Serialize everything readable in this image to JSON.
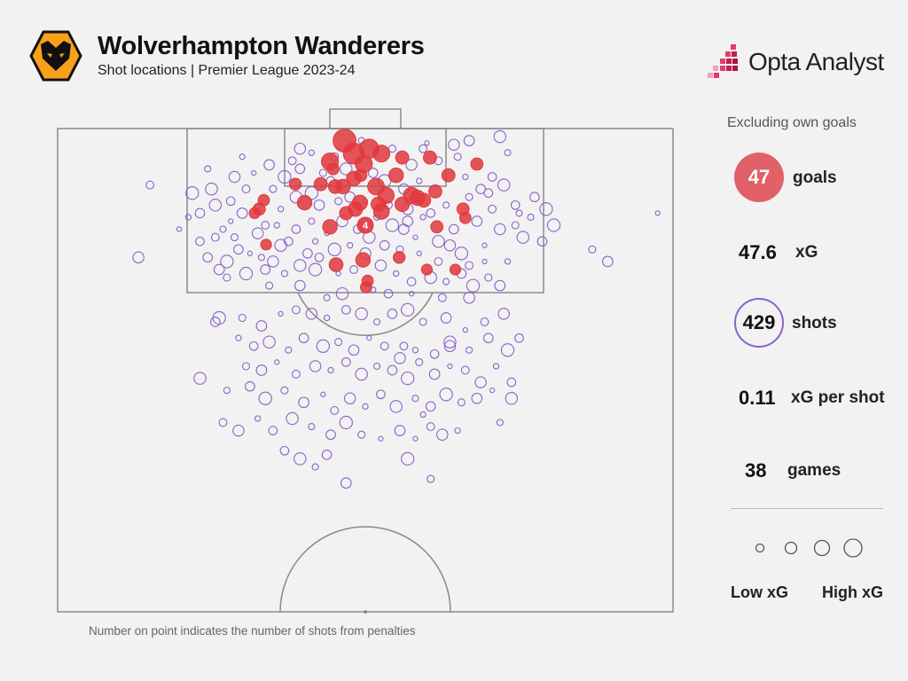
{
  "header": {
    "title": "Wolverhampton Wanderers",
    "subtitle": "Shot locations | Premier League 2023-24"
  },
  "brand": {
    "name": "Opta Analyst"
  },
  "colors": {
    "goal": "#e0383e",
    "shot": "#8a63c9",
    "line": "#8a8a8a",
    "background": "#f2f2f2",
    "badge": "#f9a01b"
  },
  "stats": {
    "note": "Excluding own goals",
    "goals": {
      "value": "47",
      "label": "goals"
    },
    "xg": {
      "value": "47.6",
      "label": "xG"
    },
    "shots": {
      "value": "429",
      "label": "shots"
    },
    "xg_per_shot": {
      "value": "0.11",
      "label": "xG per shot"
    },
    "games": {
      "value": "38",
      "label": "games"
    }
  },
  "legend": {
    "low": "Low xG",
    "high": "High xG"
  },
  "footnote": "Number on point indicates the number of shots from penalties",
  "chart_data": {
    "type": "scatter",
    "pitch": "half-pitch shot map, attacking goal at top",
    "units": "x = yards from left touchline (0–80), y = yards from goal line (0–60)",
    "penalty_marker": {
      "x": 40,
      "y": 12,
      "label": "4",
      "result": "goal",
      "shots": 4
    },
    "goals": [
      {
        "x": 37.3,
        "y": 1.5,
        "xg": 0.55
      },
      {
        "x": 38.5,
        "y": 3.1,
        "xg": 0.42
      },
      {
        "x": 40.5,
        "y": 2.5,
        "xg": 0.32
      },
      {
        "x": 39.8,
        "y": 4.4,
        "xg": 0.22
      },
      {
        "x": 35.4,
        "y": 4.1,
        "xg": 0.22
      },
      {
        "x": 42.1,
        "y": 3.1,
        "xg": 0.2
      },
      {
        "x": 44.8,
        "y": 3.6,
        "xg": 0.08
      },
      {
        "x": 48.4,
        "y": 3.6,
        "xg": 0.08
      },
      {
        "x": 50.8,
        "y": 5.8,
        "xg": 0.08
      },
      {
        "x": 44.0,
        "y": 5.8,
        "xg": 0.12
      },
      {
        "x": 41.4,
        "y": 7.2,
        "xg": 0.2
      },
      {
        "x": 38.5,
        "y": 6.2,
        "xg": 0.12
      },
      {
        "x": 39.4,
        "y": 5.8,
        "xg": 0.06
      },
      {
        "x": 30.9,
        "y": 6.9,
        "xg": 0.05
      },
      {
        "x": 34.2,
        "y": 6.9,
        "xg": 0.08
      },
      {
        "x": 36.1,
        "y": 7.2,
        "xg": 0.1
      },
      {
        "x": 37.1,
        "y": 7.2,
        "xg": 0.12
      },
      {
        "x": 42.7,
        "y": 8.3,
        "xg": 0.18
      },
      {
        "x": 46.0,
        "y": 8.3,
        "xg": 0.18
      },
      {
        "x": 46.8,
        "y": 8.6,
        "xg": 0.14
      },
      {
        "x": 47.6,
        "y": 8.9,
        "xg": 0.1
      },
      {
        "x": 49.1,
        "y": 7.8,
        "xg": 0.08
      },
      {
        "x": 44.8,
        "y": 9.4,
        "xg": 0.12
      },
      {
        "x": 41.7,
        "y": 9.4,
        "xg": 0.12
      },
      {
        "x": 38.7,
        "y": 10.0,
        "xg": 0.12
      },
      {
        "x": 37.5,
        "y": 10.5,
        "xg": 0.08
      },
      {
        "x": 42.1,
        "y": 10.3,
        "xg": 0.16
      },
      {
        "x": 39.3,
        "y": 9.2,
        "xg": 0.14
      },
      {
        "x": 32.1,
        "y": 9.2,
        "xg": 0.12
      },
      {
        "x": 26.8,
        "y": 8.9,
        "xg": 0.04
      },
      {
        "x": 26.2,
        "y": 10.0,
        "xg": 0.06
      },
      {
        "x": 25.6,
        "y": 10.5,
        "xg": 0.03
      },
      {
        "x": 35.4,
        "y": 12.2,
        "xg": 0.12
      },
      {
        "x": 49.3,
        "y": 12.2,
        "xg": 0.06
      },
      {
        "x": 52.7,
        "y": 10.0,
        "xg": 0.06
      },
      {
        "x": 53.0,
        "y": 11.1,
        "xg": 0.04
      },
      {
        "x": 54.5,
        "y": 4.4,
        "xg": 0.06
      },
      {
        "x": 27.1,
        "y": 14.4,
        "xg": 0.03
      },
      {
        "x": 36.2,
        "y": 16.9,
        "xg": 0.1
      },
      {
        "x": 39.7,
        "y": 16.3,
        "xg": 0.12
      },
      {
        "x": 40.3,
        "y": 18.9,
        "xg": 0.04
      },
      {
        "x": 40.1,
        "y": 19.7,
        "xg": 0.04
      },
      {
        "x": 48.0,
        "y": 17.5,
        "xg": 0.03
      },
      {
        "x": 51.7,
        "y": 17.5,
        "xg": 0.03
      },
      {
        "x": 35.8,
        "y": 5.0,
        "xg": 0.05
      },
      {
        "x": 44.4,
        "y": 16.0,
        "xg": 0.05
      }
    ],
    "shots": [
      {
        "x": 15.8,
        "y": 12.5
      },
      {
        "x": 12.0,
        "y": 7.0
      },
      {
        "x": 10.5,
        "y": 16.0
      },
      {
        "x": 17.0,
        "y": 11.0
      },
      {
        "x": 18.5,
        "y": 14.0
      },
      {
        "x": 20.5,
        "y": 9.5
      },
      {
        "x": 21.5,
        "y": 12.5
      },
      {
        "x": 19.5,
        "y": 16.0
      },
      {
        "x": 22.0,
        "y": 16.5
      },
      {
        "x": 23.0,
        "y": 13.5
      },
      {
        "x": 24.0,
        "y": 10.5
      },
      {
        "x": 25.0,
        "y": 15.5
      },
      {
        "x": 27.0,
        "y": 12.0
      },
      {
        "x": 28.0,
        "y": 16.5
      },
      {
        "x": 29.0,
        "y": 10.0
      },
      {
        "x": 30.0,
        "y": 14.0
      },
      {
        "x": 31.0,
        "y": 8.5
      },
      {
        "x": 33.0,
        "y": 11.5
      },
      {
        "x": 32.5,
        "y": 15.5
      },
      {
        "x": 33.5,
        "y": 17.5
      },
      {
        "x": 34.5,
        "y": 5.5
      },
      {
        "x": 34.0,
        "y": 9.5
      },
      {
        "x": 35.0,
        "y": 13.0
      },
      {
        "x": 36.0,
        "y": 3.5
      },
      {
        "x": 37.0,
        "y": 11.5
      },
      {
        "x": 38.0,
        "y": 14.5
      },
      {
        "x": 39.0,
        "y": 12.5
      },
      {
        "x": 40.5,
        "y": 13.5
      },
      {
        "x": 41.5,
        "y": 11.0
      },
      {
        "x": 42.5,
        "y": 14.5
      },
      {
        "x": 43.5,
        "y": 12.0
      },
      {
        "x": 44.5,
        "y": 15.0
      },
      {
        "x": 45.5,
        "y": 11.5
      },
      {
        "x": 46.5,
        "y": 13.5
      },
      {
        "x": 47.5,
        "y": 2.5
      },
      {
        "x": 46.0,
        "y": 4.5
      },
      {
        "x": 47.0,
        "y": 6.5
      },
      {
        "x": 48.5,
        "y": 10.5
      },
      {
        "x": 49.5,
        "y": 14.0
      },
      {
        "x": 50.5,
        "y": 9.5
      },
      {
        "x": 51.5,
        "y": 12.5
      },
      {
        "x": 52.5,
        "y": 15.5
      },
      {
        "x": 53.5,
        "y": 8.5
      },
      {
        "x": 54.5,
        "y": 11.5
      },
      {
        "x": 55.5,
        "y": 14.5
      },
      {
        "x": 56.5,
        "y": 10.0
      },
      {
        "x": 57.5,
        "y": 12.5
      },
      {
        "x": 58.5,
        "y": 16.5
      },
      {
        "x": 59.5,
        "y": 9.5
      },
      {
        "x": 60.5,
        "y": 13.5
      },
      {
        "x": 61.5,
        "y": 11.0
      },
      {
        "x": 63.0,
        "y": 14.0
      },
      {
        "x": 64.5,
        "y": 12.0
      },
      {
        "x": 69.5,
        "y": 15.0
      },
      {
        "x": 71.5,
        "y": 16.5
      },
      {
        "x": 78.0,
        "y": 10.5
      },
      {
        "x": 30.5,
        "y": 4.0
      },
      {
        "x": 31.5,
        "y": 2.5
      },
      {
        "x": 33.0,
        "y": 3.0
      },
      {
        "x": 35.5,
        "y": 6.5
      },
      {
        "x": 37.5,
        "y": 5.0
      },
      {
        "x": 39.5,
        "y": 1.5
      },
      {
        "x": 41.0,
        "y": 5.5
      },
      {
        "x": 42.5,
        "y": 6.5
      },
      {
        "x": 43.5,
        "y": 2.5
      },
      {
        "x": 45.0,
        "y": 7.5
      },
      {
        "x": 48.0,
        "y": 1.8
      },
      {
        "x": 49.5,
        "y": 4.0
      },
      {
        "x": 51.5,
        "y": 2.0
      },
      {
        "x": 53.0,
        "y": 6.0
      },
      {
        "x": 56.5,
        "y": 6.0
      },
      {
        "x": 57.5,
        "y": 1.0
      },
      {
        "x": 58.5,
        "y": 3.0
      },
      {
        "x": 55.0,
        "y": 7.5
      },
      {
        "x": 29.5,
        "y": 6.0
      },
      {
        "x": 28.0,
        "y": 7.5
      },
      {
        "x": 27.5,
        "y": 4.5
      },
      {
        "x": 25.5,
        "y": 5.5
      },
      {
        "x": 24.5,
        "y": 7.5
      },
      {
        "x": 23.0,
        "y": 6.0
      },
      {
        "x": 24.0,
        "y": 3.5
      },
      {
        "x": 22.5,
        "y": 9.0
      },
      {
        "x": 20.0,
        "y": 7.5
      },
      {
        "x": 19.5,
        "y": 5.0
      },
      {
        "x": 18.5,
        "y": 10.5
      },
      {
        "x": 17.5,
        "y": 8.0
      },
      {
        "x": 36.5,
        "y": 9.0
      },
      {
        "x": 38.0,
        "y": 8.5
      },
      {
        "x": 40.0,
        "y": 9.0
      },
      {
        "x": 43.0,
        "y": 9.5
      },
      {
        "x": 45.5,
        "y": 10.0
      },
      {
        "x": 47.5,
        "y": 11.0
      },
      {
        "x": 34.0,
        "y": 16.0
      },
      {
        "x": 31.5,
        "y": 17.0
      },
      {
        "x": 29.5,
        "y": 18.0
      },
      {
        "x": 27.0,
        "y": 17.5
      },
      {
        "x": 24.5,
        "y": 18.0
      },
      {
        "x": 22.0,
        "y": 18.5
      },
      {
        "x": 21.0,
        "y": 17.5
      },
      {
        "x": 36.5,
        "y": 18.0
      },
      {
        "x": 38.5,
        "y": 17.5
      },
      {
        "x": 42.0,
        "y": 17.0
      },
      {
        "x": 44.0,
        "y": 18.0
      },
      {
        "x": 46.0,
        "y": 19.0
      },
      {
        "x": 48.5,
        "y": 18.5
      },
      {
        "x": 50.5,
        "y": 19.0
      },
      {
        "x": 52.5,
        "y": 18.0
      },
      {
        "x": 54.0,
        "y": 19.5
      },
      {
        "x": 56.0,
        "y": 18.5
      },
      {
        "x": 57.5,
        "y": 19.5
      },
      {
        "x": 55.5,
        "y": 16.5
      },
      {
        "x": 53.5,
        "y": 17.0
      },
      {
        "x": 40.0,
        "y": 15.5
      },
      {
        "x": 41.0,
        "y": 20.0
      },
      {
        "x": 43.0,
        "y": 20.5
      },
      {
        "x": 37.0,
        "y": 20.5
      },
      {
        "x": 35.0,
        "y": 21.0
      },
      {
        "x": 20.5,
        "y": 24.0
      },
      {
        "x": 21.0,
        "y": 23.5
      },
      {
        "x": 24.0,
        "y": 23.5
      },
      {
        "x": 26.5,
        "y": 24.5
      },
      {
        "x": 29.0,
        "y": 23.0
      },
      {
        "x": 31.0,
        "y": 22.5
      },
      {
        "x": 33.0,
        "y": 23.0
      },
      {
        "x": 35.0,
        "y": 23.5
      },
      {
        "x": 37.5,
        "y": 22.5
      },
      {
        "x": 39.5,
        "y": 23.0
      },
      {
        "x": 41.5,
        "y": 24.0
      },
      {
        "x": 43.5,
        "y": 23.0
      },
      {
        "x": 45.5,
        "y": 22.5
      },
      {
        "x": 47.5,
        "y": 24.0
      },
      {
        "x": 50.5,
        "y": 23.5
      },
      {
        "x": 53.0,
        "y": 25.0
      },
      {
        "x": 55.5,
        "y": 24.0
      },
      {
        "x": 58.0,
        "y": 23.0
      },
      {
        "x": 23.5,
        "y": 26.0
      },
      {
        "x": 25.5,
        "y": 27.0
      },
      {
        "x": 27.5,
        "y": 26.5
      },
      {
        "x": 30.0,
        "y": 27.5
      },
      {
        "x": 32.0,
        "y": 26.0
      },
      {
        "x": 34.5,
        "y": 27.0
      },
      {
        "x": 36.5,
        "y": 26.5
      },
      {
        "x": 38.5,
        "y": 27.5
      },
      {
        "x": 40.5,
        "y": 26.0
      },
      {
        "x": 42.5,
        "y": 27.0
      },
      {
        "x": 44.5,
        "y": 28.5
      },
      {
        "x": 46.5,
        "y": 27.5
      },
      {
        "x": 49.0,
        "y": 28.0
      },
      {
        "x": 51.0,
        "y": 26.5
      },
      {
        "x": 53.5,
        "y": 27.5
      },
      {
        "x": 56.0,
        "y": 26.0
      },
      {
        "x": 58.5,
        "y": 27.5
      },
      {
        "x": 24.5,
        "y": 29.5
      },
      {
        "x": 26.5,
        "y": 30.0
      },
      {
        "x": 28.5,
        "y": 29.0
      },
      {
        "x": 31.0,
        "y": 30.5
      },
      {
        "x": 33.5,
        "y": 29.5
      },
      {
        "x": 35.5,
        "y": 30.0
      },
      {
        "x": 37.5,
        "y": 29.0
      },
      {
        "x": 39.5,
        "y": 30.5
      },
      {
        "x": 41.5,
        "y": 29.5
      },
      {
        "x": 43.5,
        "y": 30.0
      },
      {
        "x": 45.5,
        "y": 31.0
      },
      {
        "x": 47.0,
        "y": 29.0
      },
      {
        "x": 49.0,
        "y": 30.5
      },
      {
        "x": 51.0,
        "y": 29.5
      },
      {
        "x": 53.0,
        "y": 30.0
      },
      {
        "x": 55.0,
        "y": 31.5
      },
      {
        "x": 57.0,
        "y": 29.5
      },
      {
        "x": 59.0,
        "y": 31.5
      },
      {
        "x": 18.5,
        "y": 31.0
      },
      {
        "x": 22.0,
        "y": 32.5
      },
      {
        "x": 25.0,
        "y": 32.0
      },
      {
        "x": 27.0,
        "y": 33.5
      },
      {
        "x": 29.5,
        "y": 32.5
      },
      {
        "x": 32.0,
        "y": 34.0
      },
      {
        "x": 34.5,
        "y": 33.0
      },
      {
        "x": 36.0,
        "y": 35.0
      },
      {
        "x": 38.0,
        "y": 33.5
      },
      {
        "x": 40.0,
        "y": 34.5
      },
      {
        "x": 42.0,
        "y": 33.0
      },
      {
        "x": 44.0,
        "y": 34.5
      },
      {
        "x": 46.5,
        "y": 33.5
      },
      {
        "x": 48.5,
        "y": 34.5
      },
      {
        "x": 50.5,
        "y": 33.0
      },
      {
        "x": 52.5,
        "y": 34.0
      },
      {
        "x": 54.5,
        "y": 33.5
      },
      {
        "x": 56.5,
        "y": 32.5
      },
      {
        "x": 21.5,
        "y": 36.5
      },
      {
        "x": 23.5,
        "y": 37.5
      },
      {
        "x": 26.0,
        "y": 36.0
      },
      {
        "x": 28.0,
        "y": 37.5
      },
      {
        "x": 30.5,
        "y": 36.0
      },
      {
        "x": 33.0,
        "y": 37.0
      },
      {
        "x": 35.5,
        "y": 38.0
      },
      {
        "x": 37.5,
        "y": 36.5
      },
      {
        "x": 39.5,
        "y": 38.0
      },
      {
        "x": 44.5,
        "y": 37.5
      },
      {
        "x": 46.5,
        "y": 38.5
      },
      {
        "x": 48.5,
        "y": 37.0
      },
      {
        "x": 50.0,
        "y": 38.0
      },
      {
        "x": 52.0,
        "y": 37.5
      },
      {
        "x": 29.5,
        "y": 40.0
      },
      {
        "x": 31.5,
        "y": 41.0
      },
      {
        "x": 33.5,
        "y": 42.0
      },
      {
        "x": 35.0,
        "y": 40.5
      },
      {
        "x": 45.5,
        "y": 41.0
      },
      {
        "x": 48.5,
        "y": 43.5
      },
      {
        "x": 37.5,
        "y": 44.0
      },
      {
        "x": 42.0,
        "y": 38.5
      },
      {
        "x": 45.0,
        "y": 27.0
      },
      {
        "x": 51.0,
        "y": 27.0
      },
      {
        "x": 47.5,
        "y": 35.5
      },
      {
        "x": 60.0,
        "y": 26.0
      },
      {
        "x": 59.0,
        "y": 33.5
      },
      {
        "x": 57.5,
        "y": 36.5
      },
      {
        "x": 31.5,
        "y": 5.0
      },
      {
        "x": 33.0,
        "y": 8.0
      },
      {
        "x": 52.0,
        "y": 3.5
      },
      {
        "x": 53.5,
        "y": 1.5
      },
      {
        "x": 22.5,
        "y": 11.5
      },
      {
        "x": 20.5,
        "y": 13.5
      },
      {
        "x": 26.0,
        "y": 13.0
      },
      {
        "x": 28.5,
        "y": 12.0
      },
      {
        "x": 56.0,
        "y": 8.0
      },
      {
        "x": 58.0,
        "y": 7.0
      },
      {
        "x": 60.0,
        "y": 10.5
      },
      {
        "x": 62.0,
        "y": 8.5
      },
      {
        "x": 63.5,
        "y": 10.0
      },
      {
        "x": 59.5,
        "y": 12.0
      },
      {
        "x": 45.0,
        "y": 12.5
      },
      {
        "x": 47.0,
        "y": 15.5
      },
      {
        "x": 49.5,
        "y": 16.5
      },
      {
        "x": 51.0,
        "y": 14.5
      },
      {
        "x": 33.5,
        "y": 14.0
      },
      {
        "x": 31.0,
        "y": 12.5
      },
      {
        "x": 29.0,
        "y": 14.5
      },
      {
        "x": 26.5,
        "y": 16.0
      },
      {
        "x": 23.5,
        "y": 15.0
      },
      {
        "x": 36.0,
        "y": 15.0
      },
      {
        "x": 27.5,
        "y": 19.5
      },
      {
        "x": 31.5,
        "y": 19.5
      },
      {
        "x": 46.0,
        "y": 20.5
      },
      {
        "x": 50.0,
        "y": 21.0
      },
      {
        "x": 53.5,
        "y": 21.0
      }
    ]
  }
}
